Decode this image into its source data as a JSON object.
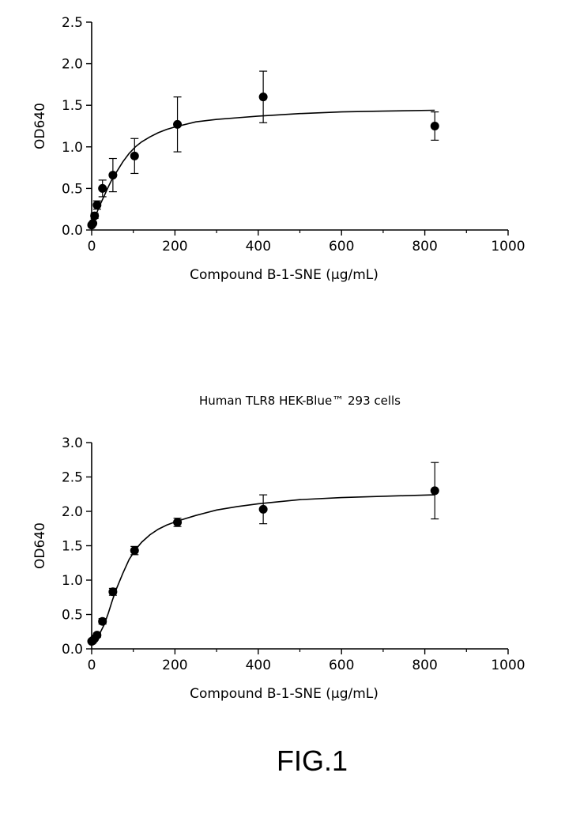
{
  "figure_label": "FIG.1",
  "chart_data": [
    {
      "type": "scatter",
      "title": "",
      "xlabel": "Compound B-1-SNE (μg/mL)",
      "ylabel": "OD640",
      "xlim": [
        0,
        1000
      ],
      "ylim": [
        0,
        2.5
      ],
      "xticks": [
        0,
        200,
        400,
        600,
        800,
        1000
      ],
      "yticks": [
        "0.0",
        "0.5",
        "1.0",
        "1.5",
        "2.0",
        "2.5"
      ],
      "grid": false,
      "series": [
        {
          "x": [
            0,
            3,
            7,
            13,
            26,
            51,
            103,
            206,
            412,
            824
          ],
          "y": [
            0.06,
            0.08,
            0.17,
            0.3,
            0.5,
            0.66,
            0.89,
            1.27,
            1.6,
            1.25
          ],
          "error": [
            0,
            0,
            0.03,
            0.05,
            0.1,
            0.2,
            0.21,
            0.33,
            0.31,
            0.17
          ]
        }
      ],
      "fit_curve": [
        [
          0,
          0.04
        ],
        [
          10,
          0.18
        ],
        [
          20,
          0.3
        ],
        [
          30,
          0.41
        ],
        [
          40,
          0.52
        ],
        [
          50,
          0.62
        ],
        [
          60,
          0.7
        ],
        [
          75,
          0.82
        ],
        [
          90,
          0.92
        ],
        [
          105,
          1.0
        ],
        [
          120,
          1.06
        ],
        [
          140,
          1.12
        ],
        [
          160,
          1.17
        ],
        [
          180,
          1.21
        ],
        [
          200,
          1.24
        ],
        [
          250,
          1.3
        ],
        [
          300,
          1.33
        ],
        [
          350,
          1.35
        ],
        [
          400,
          1.37
        ],
        [
          500,
          1.4
        ],
        [
          600,
          1.42
        ],
        [
          700,
          1.43
        ],
        [
          824,
          1.44
        ]
      ]
    },
    {
      "type": "scatter",
      "title": "Human TLR8 HEK-Blue™ 293 cells",
      "xlabel": "Compound B-1-SNE (μg/mL)",
      "ylabel": "OD640",
      "xlim": [
        0,
        1000
      ],
      "ylim": [
        0,
        3.0
      ],
      "xticks": [
        0,
        200,
        400,
        600,
        800,
        1000
      ],
      "yticks": [
        "0.0",
        "0.5",
        "1.0",
        "1.5",
        "2.0",
        "2.5",
        "3.0"
      ],
      "grid": false,
      "series": [
        {
          "x": [
            0,
            3,
            7,
            13,
            26,
            51,
            103,
            206,
            412,
            824
          ],
          "y": [
            0.11,
            0.12,
            0.15,
            0.2,
            0.4,
            0.83,
            1.43,
            1.84,
            2.03,
            2.3
          ],
          "error": [
            0,
            0,
            0.02,
            0.03,
            0.04,
            0.05,
            0.06,
            0.06,
            0.21,
            0.41
          ]
        }
      ],
      "fit_curve": [
        [
          0,
          0.1
        ],
        [
          10,
          0.13
        ],
        [
          20,
          0.23
        ],
        [
          30,
          0.35
        ],
        [
          40,
          0.52
        ],
        [
          50,
          0.71
        ],
        [
          60,
          0.88
        ],
        [
          75,
          1.1
        ],
        [
          90,
          1.3
        ],
        [
          105,
          1.44
        ],
        [
          120,
          1.55
        ],
        [
          140,
          1.66
        ],
        [
          160,
          1.74
        ],
        [
          180,
          1.8
        ],
        [
          206,
          1.86
        ],
        [
          250,
          1.94
        ],
        [
          300,
          2.02
        ],
        [
          350,
          2.07
        ],
        [
          400,
          2.11
        ],
        [
          500,
          2.17
        ],
        [
          600,
          2.2
        ],
        [
          700,
          2.22
        ],
        [
          824,
          2.24
        ]
      ]
    }
  ]
}
